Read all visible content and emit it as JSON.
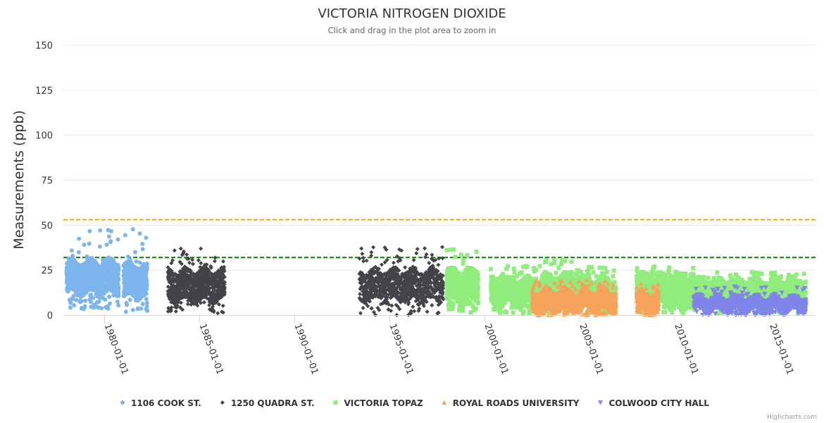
{
  "chart_data": {
    "type": "scatter",
    "title": "VICTORIA NITROGEN DIOXIDE",
    "subtitle": "Click and drag in the plot area to zoom in",
    "ylabel": "Measurements (ppb)",
    "ylim": [
      0,
      150
    ],
    "yticks": [
      0,
      25,
      50,
      75,
      100,
      125,
      150
    ],
    "xlim": [
      "1977-11-01",
      "2017-06-01"
    ],
    "xticks": [
      "1980-01-01",
      "1985-01-01",
      "1990-01-01",
      "1995-01-01",
      "2000-01-01",
      "2005-01-01",
      "2010-01-01",
      "2015-01-01"
    ],
    "grid": true,
    "legend_position": "bottom-center",
    "reference_lines": [
      {
        "value": 53,
        "color": "#f0a30a",
        "style": "dashed"
      },
      {
        "value": 32,
        "color": "#008000",
        "style": "dashed"
      }
    ],
    "series": [
      {
        "name": "1106 COOK ST.",
        "color": "#7cb5ec",
        "marker": "circle",
        "ranges": [
          {
            "start": "1978-01-01",
            "end": "1980-10-01",
            "typical": [
              12,
              30
            ],
            "min": 3,
            "max": 48
          },
          {
            "start": "1981-01-01",
            "end": "1982-04-01",
            "typical": [
              10,
              28
            ],
            "min": 1,
            "max": 49
          }
        ]
      },
      {
        "name": "1250 QUADRA ST.",
        "color": "#434348",
        "marker": "diamond",
        "ranges": [
          {
            "start": "1983-05-01",
            "end": "1986-05-01",
            "typical": [
              8,
              25
            ],
            "min": 1,
            "max": 37
          },
          {
            "start": "1993-06-01",
            "end": "1997-11-01",
            "typical": [
              8,
              25
            ],
            "min": 0,
            "max": 38
          }
        ]
      },
      {
        "name": "VICTORIA TOPAZ",
        "color": "#90ed7d",
        "marker": "square",
        "ranges": [
          {
            "start": "1998-01-01",
            "end": "1999-09-01",
            "typical": [
              8,
              25
            ],
            "min": 1,
            "max": 37
          },
          {
            "start": "2000-05-01",
            "end": "2002-12-01",
            "typical": [
              6,
              20
            ],
            "min": 1,
            "max": 28
          },
          {
            "start": "2003-01-01",
            "end": "2005-01-01",
            "typical": [
              5,
              22
            ],
            "min": 1,
            "max": 31
          },
          {
            "start": "2005-01-01",
            "end": "2006-12-01",
            "typical": [
              5,
              20
            ],
            "min": 1,
            "max": 27
          },
          {
            "start": "2008-01-01",
            "end": "2011-01-01",
            "typical": [
              6,
              22
            ],
            "min": 1,
            "max": 27
          },
          {
            "start": "2011-01-01",
            "end": "2016-12-01",
            "typical": [
              6,
              20
            ],
            "min": 1,
            "max": 24
          }
        ]
      },
      {
        "name": "ROYAL ROADS UNIVERSITY",
        "color": "#f7a35c",
        "marker": "triangle",
        "ranges": [
          {
            "start": "2002-07-01",
            "end": "2004-11-01",
            "typical": [
              3,
              14
            ],
            "min": 0,
            "max": 19
          },
          {
            "start": "2004-12-01",
            "end": "2006-12-01",
            "typical": [
              3,
              14
            ],
            "min": 0,
            "max": 20
          },
          {
            "start": "2008-01-01",
            "end": "2009-03-01",
            "typical": [
              2,
              13
            ],
            "min": 0,
            "max": 18
          }
        ]
      },
      {
        "name": "COLWOOD CITY HALL",
        "color": "#8085e9",
        "marker": "triangle-down",
        "ranges": [
          {
            "start": "2011-01-01",
            "end": "2016-12-01",
            "typical": [
              2,
              10
            ],
            "min": 0,
            "max": 16
          }
        ]
      }
    ]
  },
  "credits": "Highcharts.com"
}
